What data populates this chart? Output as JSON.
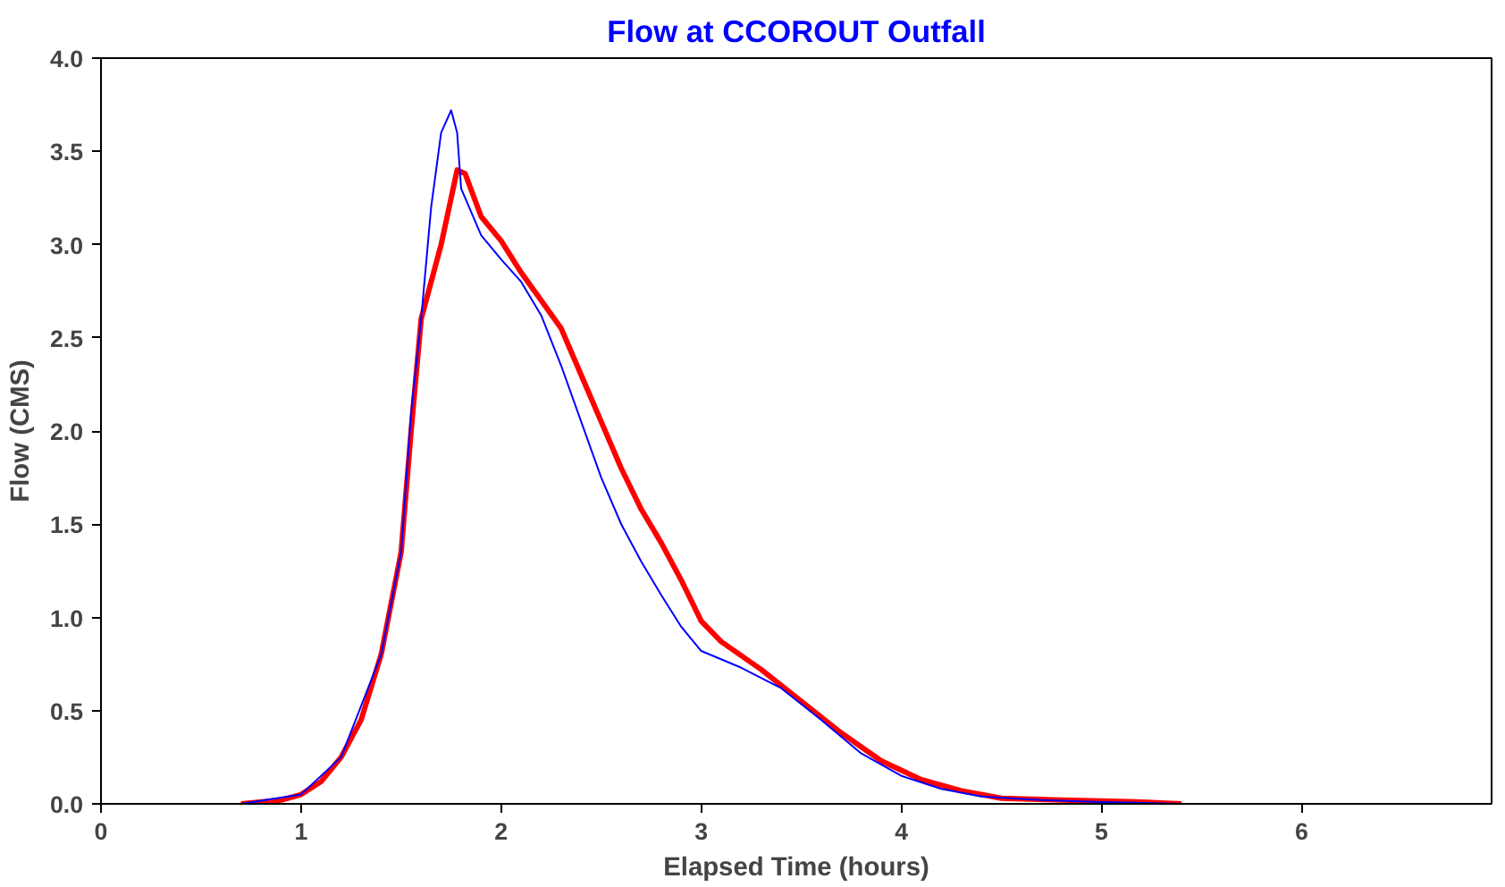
{
  "chart_data": {
    "type": "line",
    "title": "Flow at CCOROUT Outfall",
    "xlabel": "Elapsed Time (hours)",
    "ylabel": "Flow (CMS)",
    "xlim": [
      0,
      6.95
    ],
    "xticks": [
      0,
      1,
      2,
      3,
      4,
      5,
      6
    ],
    "ylim": [
      0,
      4.0
    ],
    "yticks": [
      {
        "value": 0,
        "label": "0.0"
      },
      {
        "value": 0.5,
        "label": "0.5"
      },
      {
        "value": 1,
        "label": "1.0"
      },
      {
        "value": 1.5,
        "label": "1.5"
      },
      {
        "value": 2,
        "label": "2.0"
      },
      {
        "value": 2.5,
        "label": "2.5"
      },
      {
        "value": 3,
        "label": "3.0"
      },
      {
        "value": 3.5,
        "label": "3.5"
      },
      {
        "value": 4,
        "label": "4.0"
      }
    ],
    "grid": false,
    "marker": "none",
    "line_style": "solid",
    "series": [
      {
        "color": "#ff0000",
        "x": [
          0.7,
          0.9,
          1.0,
          1.1,
          1.2,
          1.3,
          1.4,
          1.5,
          1.55,
          1.6,
          1.7,
          1.78,
          1.82,
          1.9,
          2.0,
          2.1,
          2.2,
          2.3,
          2.4,
          2.5,
          2.6,
          2.7,
          2.8,
          2.9,
          3.0,
          3.1,
          3.3,
          3.5,
          3.7,
          3.9,
          4.1,
          4.3,
          4.5,
          4.8,
          5.2,
          5.4
        ],
        "values": [
          0.0,
          0.02,
          0.05,
          0.12,
          0.25,
          0.45,
          0.8,
          1.35,
          2.0,
          2.6,
          3.0,
          3.4,
          3.38,
          3.15,
          3.02,
          2.85,
          2.7,
          2.55,
          2.3,
          2.05,
          1.8,
          1.58,
          1.4,
          1.2,
          0.98,
          0.87,
          0.72,
          0.55,
          0.38,
          0.23,
          0.13,
          0.07,
          0.03,
          0.02,
          0.01,
          0.0
        ]
      },
      {
        "color": "#0000ff",
        "x": [
          0.7,
          1.0,
          1.2,
          1.4,
          1.5,
          1.55,
          1.6,
          1.65,
          1.7,
          1.75,
          1.78,
          1.8,
          1.9,
          2.0,
          2.1,
          2.2,
          2.3,
          2.4,
          2.5,
          2.6,
          2.7,
          2.8,
          2.9,
          3.0,
          3.2,
          3.4,
          3.6,
          3.8,
          4.0,
          4.2,
          4.4,
          4.7,
          5.0,
          5.4
        ],
        "values": [
          0.0,
          0.05,
          0.25,
          0.8,
          1.35,
          2.1,
          2.6,
          3.2,
          3.6,
          3.72,
          3.6,
          3.3,
          3.05,
          2.92,
          2.8,
          2.62,
          2.35,
          2.05,
          1.75,
          1.5,
          1.3,
          1.12,
          0.95,
          0.82,
          0.73,
          0.62,
          0.45,
          0.27,
          0.15,
          0.08,
          0.04,
          0.02,
          0.01,
          0.0
        ]
      }
    ]
  }
}
